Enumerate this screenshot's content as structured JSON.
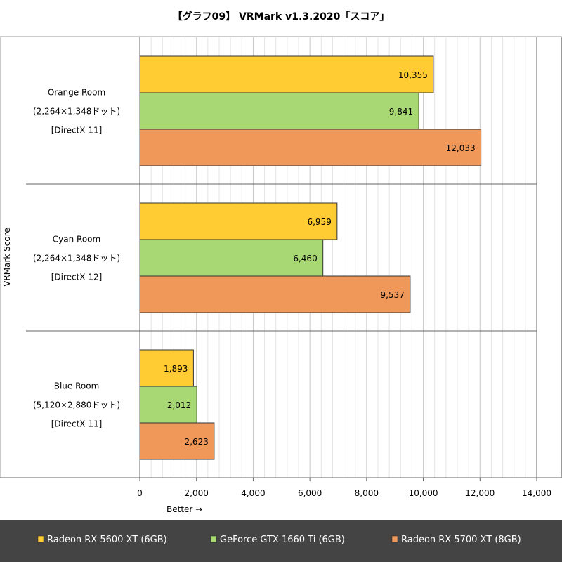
{
  "chart_data": {
    "type": "bar",
    "orientation": "horizontal",
    "title": "【グラフ09】 VRMark v1.3.2020「スコア」",
    "ylabel": "VRMark Score",
    "xlabel": "Better →",
    "xlim": [
      0,
      14000
    ],
    "xticks": [
      0,
      2000,
      4000,
      6000,
      8000,
      10000,
      12000,
      14000
    ],
    "xtick_labels": [
      "0",
      "2,000",
      "4,000",
      "6,000",
      "8,000",
      "10,000",
      "12,000",
      "14,000"
    ],
    "grid": true,
    "legend_position": "bottom",
    "categories": [
      {
        "lines": [
          "Orange Room",
          "(2,264×1,348ドット)",
          "[DirectX 11]"
        ]
      },
      {
        "lines": [
          "Cyan Room",
          "(2,264×1,348ドット)",
          "[DirectX 12]"
        ]
      },
      {
        "lines": [
          "Blue Room",
          "(5,120×2,880ドット)",
          "[DirectX 11]"
        ]
      }
    ],
    "series": [
      {
        "name": "Radeon RX 5600 XT (6GB)",
        "color": "#ffcc33",
        "values": [
          10355,
          6959,
          1893
        ],
        "labels": [
          "10,355",
          "6,959",
          "1,893"
        ]
      },
      {
        "name": "GeForce GTX 1660 Ti (6GB)",
        "color": "#a8d873",
        "values": [
          9841,
          6460,
          2012
        ],
        "labels": [
          "9,841",
          "6,460",
          "2,012"
        ]
      },
      {
        "name": "Radeon RX 5700 XT (8GB)",
        "color": "#f0985a",
        "values": [
          12033,
          9537,
          2623
        ],
        "labels": [
          "12,033",
          "9,537",
          "2,623"
        ]
      }
    ]
  }
}
